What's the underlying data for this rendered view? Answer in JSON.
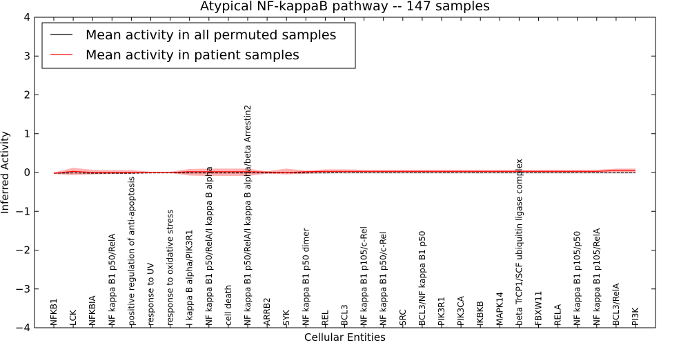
{
  "chart_data": {
    "type": "line",
    "title": "Atypical NF-kappaB pathway -- 147 samples",
    "xlabel": "Cellular Entities",
    "ylabel": "Inferred Activity",
    "ylim": [
      -4,
      4
    ],
    "yticks": [
      "-4",
      "-3",
      "-2",
      "-1",
      "0",
      "1",
      "2",
      "3",
      "4"
    ],
    "grid": false,
    "legend_position": "top-left",
    "categories": [
      "NFKB1",
      "LCK",
      "NFKBIA",
      "NF kappa B1 p50/RelA",
      "positive regulation of anti-apoptosis",
      "response to UV",
      "response to oxidative stress",
      "I kappa B alpha/PIK3R1",
      "NF kappa B1 p50/RelA/I kappa B alpha",
      "cell death",
      "NF kappa B1 p50/RelA/I kappa B alpha/beta Arrestin2",
      "ARRB2",
      "SYK",
      "NF kappa B1 p50 dimer",
      "REL",
      "BCL3",
      "NF kappa B1 p105/c-Rel",
      "NF kappa B1 p50/c-Rel",
      "SRC",
      "BCL3/NF kappa B1 p50",
      "PIK3R1",
      "PIK3CA",
      "IKBKB",
      "MAPK14",
      "beta TrCP1/SCF ubiquitin ligase complex",
      "FBXW11",
      "RELA",
      "NF kappa B1 p105/p50",
      "NF kappa B1 p105/RelA",
      "BCL3/RelA",
      "PI3K"
    ],
    "series": [
      {
        "name": "Mean activity in all permuted samples",
        "color": "#000000",
        "values": [
          -0.02,
          -0.01,
          -0.02,
          -0.02,
          -0.02,
          -0.01,
          -0.01,
          -0.01,
          -0.01,
          -0.01,
          -0.01,
          -0.01,
          -0.01,
          -0.01,
          -0.01,
          0.0,
          0.0,
          0.0,
          0.0,
          0.0,
          0.0,
          0.0,
          0.0,
          0.0,
          0.0,
          0.0,
          0.0,
          0.0,
          0.0,
          0.0,
          0.0
        ],
        "lower": [
          -0.03,
          -0.03,
          -0.03,
          -0.03,
          -0.03,
          -0.02,
          -0.02,
          -0.03,
          -0.03,
          -0.03,
          -0.03,
          -0.02,
          -0.02,
          -0.03,
          -0.03,
          -0.03,
          -0.03,
          -0.03,
          -0.03,
          -0.03,
          -0.03,
          -0.03,
          -0.03,
          -0.03,
          -0.03,
          -0.03,
          -0.03,
          -0.03,
          -0.03,
          -0.03,
          -0.03
        ],
        "upper": [
          0.0,
          0.01,
          0.0,
          0.0,
          0.0,
          0.0,
          0.0,
          0.01,
          0.01,
          0.01,
          0.01,
          0.0,
          0.0,
          0.01,
          0.02,
          0.02,
          0.02,
          0.02,
          0.02,
          0.02,
          0.02,
          0.02,
          0.02,
          0.02,
          0.02,
          0.02,
          0.02,
          0.02,
          0.02,
          0.02,
          0.02
        ]
      },
      {
        "name": "Mean activity in patient samples",
        "color": "#ff0000",
        "values": [
          -0.02,
          0.03,
          0.0,
          0.0,
          0.0,
          0.0,
          0.0,
          0.02,
          0.02,
          0.02,
          0.02,
          0.01,
          0.0,
          0.02,
          0.03,
          0.03,
          0.03,
          0.03,
          0.03,
          0.03,
          0.03,
          0.03,
          0.03,
          0.03,
          0.03,
          0.03,
          0.03,
          0.03,
          0.03,
          0.05,
          0.05
        ],
        "lower": [
          -0.04,
          -0.07,
          -0.05,
          -0.04,
          -0.03,
          -0.01,
          -0.01,
          -0.08,
          -0.09,
          -0.09,
          -0.09,
          -0.03,
          -0.05,
          -0.03,
          -0.01,
          -0.01,
          -0.01,
          -0.01,
          -0.01,
          -0.01,
          -0.01,
          -0.01,
          -0.01,
          -0.01,
          -0.01,
          -0.01,
          -0.01,
          -0.01,
          -0.01,
          0.0,
          0.0
        ],
        "upper": [
          0.0,
          0.12,
          0.07,
          0.06,
          0.06,
          0.02,
          0.02,
          0.09,
          0.1,
          0.1,
          0.1,
          0.03,
          0.1,
          0.05,
          0.08,
          0.08,
          0.07,
          0.07,
          0.07,
          0.07,
          0.07,
          0.07,
          0.07,
          0.07,
          0.07,
          0.07,
          0.07,
          0.07,
          0.07,
          0.1,
          0.1
        ]
      }
    ]
  }
}
